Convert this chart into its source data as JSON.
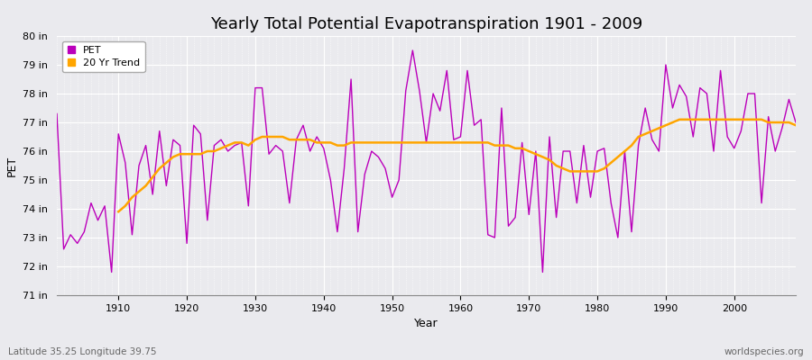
{
  "title": "Yearly Total Potential Evapotranspiration 1901 - 2009",
  "xlabel": "Year",
  "ylabel": "PET",
  "bottom_left_label": "Latitude 35.25 Longitude 39.75",
  "bottom_right_label": "worldspecies.org",
  "years": [
    1901,
    1902,
    1903,
    1904,
    1905,
    1906,
    1907,
    1908,
    1909,
    1910,
    1911,
    1912,
    1913,
    1914,
    1915,
    1916,
    1917,
    1918,
    1919,
    1920,
    1921,
    1922,
    1923,
    1924,
    1925,
    1926,
    1927,
    1928,
    1929,
    1930,
    1931,
    1932,
    1933,
    1934,
    1935,
    1936,
    1937,
    1938,
    1939,
    1940,
    1941,
    1942,
    1943,
    1944,
    1945,
    1946,
    1947,
    1948,
    1949,
    1950,
    1951,
    1952,
    1953,
    1954,
    1955,
    1956,
    1957,
    1958,
    1959,
    1960,
    1961,
    1962,
    1963,
    1964,
    1965,
    1966,
    1967,
    1968,
    1969,
    1970,
    1971,
    1972,
    1973,
    1974,
    1975,
    1976,
    1977,
    1978,
    1979,
    1980,
    1981,
    1982,
    1983,
    1984,
    1985,
    1986,
    1987,
    1988,
    1989,
    1990,
    1991,
    1992,
    1993,
    1994,
    1995,
    1996,
    1997,
    1998,
    1999,
    2000,
    2001,
    2002,
    2003,
    2004,
    2005,
    2006,
    2007,
    2008,
    2009
  ],
  "pet_values": [
    77.3,
    72.6,
    73.1,
    72.8,
    73.2,
    74.2,
    73.6,
    74.1,
    71.8,
    76.6,
    75.6,
    73.1,
    75.5,
    76.2,
    74.5,
    76.7,
    74.8,
    76.4,
    76.2,
    72.8,
    76.9,
    76.6,
    73.6,
    76.2,
    76.4,
    76.0,
    76.2,
    76.3,
    74.1,
    78.2,
    78.2,
    75.9,
    76.2,
    76.0,
    74.2,
    76.4,
    76.9,
    76.0,
    76.5,
    76.1,
    75.0,
    73.2,
    75.4,
    78.5,
    73.2,
    75.2,
    76.0,
    75.8,
    75.4,
    74.4,
    75.0,
    78.1,
    79.5,
    78.1,
    76.3,
    78.0,
    77.4,
    78.8,
    76.4,
    76.5,
    78.8,
    76.9,
    77.1,
    73.1,
    73.0,
    77.5,
    73.4,
    73.7,
    76.3,
    73.8,
    76.0,
    71.8,
    76.5,
    73.7,
    76.0,
    76.0,
    74.2,
    76.2,
    74.4,
    76.0,
    76.1,
    74.2,
    73.0,
    76.0,
    73.2,
    76.2,
    77.5,
    76.4,
    76.0,
    79.0,
    77.5,
    78.3,
    77.9,
    76.5,
    78.2,
    78.0,
    76.0,
    78.8,
    76.5,
    76.1,
    76.7,
    78.0,
    78.0,
    74.2,
    77.2,
    76.0,
    76.8,
    77.8,
    77.0
  ],
  "trend_years": [
    1910,
    1911,
    1912,
    1913,
    1914,
    1915,
    1916,
    1917,
    1918,
    1919,
    1920,
    1921,
    1922,
    1923,
    1924,
    1925,
    1926,
    1927,
    1928,
    1929,
    1930,
    1931,
    1932,
    1933,
    1934,
    1935,
    1936,
    1937,
    1938,
    1939,
    1940,
    1941,
    1942,
    1943,
    1944,
    1945,
    1946,
    1947,
    1948,
    1949,
    1950,
    1951,
    1952,
    1953,
    1954,
    1955,
    1956,
    1957,
    1958,
    1959,
    1960,
    1961,
    1962,
    1963,
    1964,
    1965,
    1966,
    1967,
    1968,
    1969,
    1970,
    1971,
    1972,
    1973,
    1974,
    1975,
    1976,
    1977,
    1978,
    1979,
    1980,
    1981,
    1982,
    1983,
    1984,
    1985,
    1986,
    1987,
    1988,
    1989,
    1990,
    1991,
    1992,
    1993,
    1994,
    1995,
    1996,
    1997,
    1998,
    1999,
    2000,
    2001,
    2002,
    2003,
    2004,
    2005,
    2006,
    2007,
    2008,
    2009
  ],
  "trend_values": [
    73.9,
    74.1,
    74.4,
    74.6,
    74.8,
    75.1,
    75.4,
    75.6,
    75.8,
    75.9,
    75.9,
    75.9,
    75.9,
    76.0,
    76.0,
    76.1,
    76.2,
    76.3,
    76.3,
    76.2,
    76.4,
    76.5,
    76.5,
    76.5,
    76.5,
    76.4,
    76.4,
    76.4,
    76.4,
    76.3,
    76.3,
    76.3,
    76.2,
    76.2,
    76.3,
    76.3,
    76.3,
    76.3,
    76.3,
    76.3,
    76.3,
    76.3,
    76.3,
    76.3,
    76.3,
    76.3,
    76.3,
    76.3,
    76.3,
    76.3,
    76.3,
    76.3,
    76.3,
    76.3,
    76.3,
    76.2,
    76.2,
    76.2,
    76.1,
    76.1,
    76.0,
    75.9,
    75.8,
    75.7,
    75.5,
    75.4,
    75.3,
    75.3,
    75.3,
    75.3,
    75.3,
    75.4,
    75.6,
    75.8,
    76.0,
    76.2,
    76.5,
    76.6,
    76.7,
    76.8,
    76.9,
    77.0,
    77.1,
    77.1,
    77.1,
    77.1,
    77.1,
    77.1,
    77.1,
    77.1,
    77.1,
    77.1,
    77.1,
    77.1,
    77.1,
    77.0,
    77.0,
    77.0,
    77.0,
    76.9
  ],
  "pet_color": "#BB00BB",
  "trend_color": "#FFA500",
  "bg_color": "#EAEAEE",
  "plot_bg_color": "#EAEAEE",
  "grid_major_color": "#FFFFFF",
  "grid_minor_color": "#FFFFFF",
  "ylim": [
    71,
    80
  ],
  "yticks": [
    71,
    72,
    73,
    74,
    75,
    76,
    77,
    78,
    79,
    80
  ],
  "ytick_labels": [
    "71 in",
    "72 in",
    "73 in",
    "74 in",
    "75 in",
    "76 in",
    "77 in",
    "78 in",
    "79 in",
    "80 in"
  ],
  "xlim": [
    1901,
    2009
  ],
  "xticks": [
    1910,
    1920,
    1930,
    1940,
    1950,
    1960,
    1970,
    1980,
    1990,
    2000
  ],
  "title_fontsize": 13,
  "axis_label_fontsize": 9,
  "tick_fontsize": 8,
  "legend_fontsize": 8,
  "pet_linewidth": 1.0,
  "trend_linewidth": 1.8
}
